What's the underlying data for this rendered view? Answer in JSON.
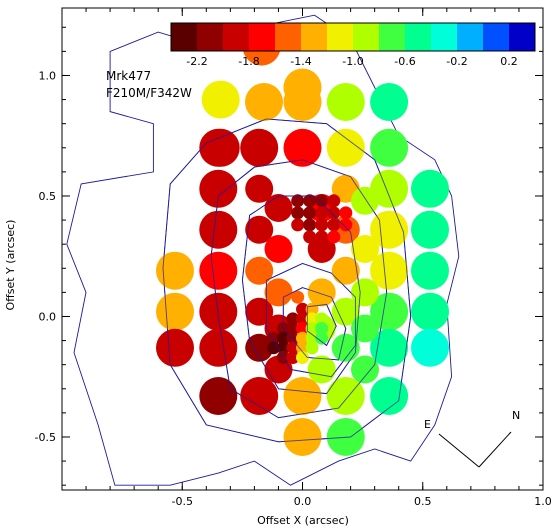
{
  "chart_data": {
    "type": "scatter",
    "title": "Mrk477",
    "subtitle": "F210M/F342W",
    "xlabel": "Offset X (arcsec)",
    "ylabel": "Offset Y (arcsec)",
    "xlim": [
      -1.0,
      1.0
    ],
    "ylim": [
      -0.72,
      1.28
    ],
    "x_ticks": [
      -0.5,
      0.0,
      0.5,
      1.0
    ],
    "x_tick_labels": [
      "-0.5",
      "0.0",
      "0.5",
      "1.0"
    ],
    "y_ticks": [
      -0.5,
      0.0,
      0.5,
      1.0
    ],
    "y_tick_labels": [
      "-0.5",
      "0.0",
      "0.5",
      "1.0"
    ],
    "grid": false,
    "colorbar": {
      "placement": "top-right",
      "range": [
        -2.4,
        0.4
      ],
      "tick_values": [
        -2.2,
        -1.8,
        -1.4,
        -1.0,
        -0.6,
        -0.2,
        0.2
      ],
      "tick_labels": [
        "-2.2",
        "-1.8",
        "-1.4",
        "-1.0",
        "-0.6",
        "-0.2",
        "0.2"
      ],
      "colors": [
        "#5a0000",
        "#900000",
        "#c80000",
        "#ff0000",
        "#ff6000",
        "#ffb000",
        "#f0f000",
        "#b0ff00",
        "#40ff40",
        "#00ff90",
        "#00ffd8",
        "#00b0ff",
        "#0050ff",
        "#0000c8"
      ]
    },
    "compass": {
      "east_label": "E",
      "north_label": "N"
    },
    "contour_color": "#1a1aa0",
    "bins_large": [
      {
        "x": -0.17,
        "y": 1.12,
        "v": -1.45
      },
      {
        "x": -0.34,
        "y": 0.9,
        "v": -1.1
      },
      {
        "x": -0.34,
        "y": 0.7,
        "v": -1.8
      },
      {
        "x": 0.0,
        "y": 0.95,
        "v": -1.3
      },
      {
        "x": 0.0,
        "y": 0.89,
        "v": -1.3
      },
      {
        "x": 0.18,
        "y": 0.89,
        "v": -1.0
      },
      {
        "x": 0.36,
        "y": 0.89,
        "v": -0.55
      },
      {
        "x": -0.16,
        "y": 0.89,
        "v": -1.3
      },
      {
        "x": -0.35,
        "y": 0.7,
        "v": -1.8
      },
      {
        "x": -0.18,
        "y": 0.7,
        "v": -1.8
      },
      {
        "x": 0.0,
        "y": 0.7,
        "v": -1.6
      },
      {
        "x": 0.18,
        "y": 0.7,
        "v": -1.1
      },
      {
        "x": 0.36,
        "y": 0.7,
        "v": -0.75
      },
      {
        "x": -0.35,
        "y": 0.53,
        "v": -1.8
      },
      {
        "x": -0.35,
        "y": 0.36,
        "v": -1.8
      },
      {
        "x": -0.35,
        "y": 0.19,
        "v": -1.6
      },
      {
        "x": -0.35,
        "y": 0.02,
        "v": -1.9
      },
      {
        "x": -0.35,
        "y": -0.13,
        "v": -1.9
      },
      {
        "x": -0.35,
        "y": -0.33,
        "v": -2.0
      },
      {
        "x": -0.53,
        "y": 0.19,
        "v": -1.3
      },
      {
        "x": -0.53,
        "y": 0.02,
        "v": -1.4
      },
      {
        "x": -0.53,
        "y": -0.13,
        "v": -1.8
      },
      {
        "x": -0.18,
        "y": -0.33,
        "v": -1.9
      },
      {
        "x": 0.0,
        "y": -0.33,
        "v": -1.3
      },
      {
        "x": 0.18,
        "y": -0.33,
        "v": -1.0
      },
      {
        "x": 0.36,
        "y": -0.33,
        "v": -0.55
      },
      {
        "x": 0.0,
        "y": -0.5,
        "v": -1.4
      },
      {
        "x": 0.18,
        "y": -0.5,
        "v": -0.65
      },
      {
        "x": 0.53,
        "y": 0.53,
        "v": -0.55
      },
      {
        "x": 0.53,
        "y": 0.36,
        "v": -0.6
      },
      {
        "x": 0.53,
        "y": 0.19,
        "v": -0.6
      },
      {
        "x": 0.53,
        "y": 0.02,
        "v": -0.6
      },
      {
        "x": 0.53,
        "y": -0.13,
        "v": -0.4
      },
      {
        "x": 0.36,
        "y": 0.53,
        "v": -1.0
      },
      {
        "x": 0.36,
        "y": 0.36,
        "v": -1.2
      },
      {
        "x": 0.36,
        "y": 0.19,
        "v": -1.1
      },
      {
        "x": 0.36,
        "y": 0.02,
        "v": -0.7
      },
      {
        "x": 0.36,
        "y": -0.13,
        "v": -0.6
      }
    ],
    "bins_medium": [
      {
        "x": -0.18,
        "y": 0.53,
        "v": -1.9
      },
      {
        "x": -0.18,
        "y": 0.36,
        "v": -1.8
      },
      {
        "x": -0.18,
        "y": 0.19,
        "v": -1.5
      },
      {
        "x": -0.18,
        "y": 0.02,
        "v": -1.9
      },
      {
        "x": -0.18,
        "y": -0.13,
        "v": -2.0
      },
      {
        "x": 0.18,
        "y": 0.53,
        "v": -1.3
      },
      {
        "x": 0.18,
        "y": 0.36,
        "v": -1.5
      },
      {
        "x": 0.18,
        "y": 0.19,
        "v": -1.4
      },
      {
        "x": 0.18,
        "y": 0.02,
        "v": -0.9
      },
      {
        "x": 0.18,
        "y": -0.13,
        "v": -0.8
      },
      {
        "x": 0.26,
        "y": 0.48,
        "v": -1.0
      },
      {
        "x": 0.26,
        "y": 0.28,
        "v": -1.2
      },
      {
        "x": 0.26,
        "y": 0.1,
        "v": -0.9
      },
      {
        "x": 0.26,
        "y": -0.05,
        "v": -0.75
      },
      {
        "x": 0.26,
        "y": -0.22,
        "v": -0.8
      },
      {
        "x": -0.1,
        "y": 0.45,
        "v": -1.9
      },
      {
        "x": -0.1,
        "y": 0.28,
        "v": -1.7
      },
      {
        "x": -0.1,
        "y": 0.1,
        "v": -1.5
      },
      {
        "x": -0.1,
        "y": -0.05,
        "v": -1.9
      },
      {
        "x": -0.1,
        "y": -0.22,
        "v": -1.9
      },
      {
        "x": 0.08,
        "y": 0.45,
        "v": -1.7
      },
      {
        "x": 0.08,
        "y": 0.28,
        "v": -1.8
      },
      {
        "x": 0.08,
        "y": 0.1,
        "v": -1.3
      },
      {
        "x": 0.08,
        "y": -0.05,
        "v": -1.0
      },
      {
        "x": 0.08,
        "y": -0.22,
        "v": -1.0
      }
    ],
    "bins_small": [
      {
        "x": -0.02,
        "y": 0.48,
        "v": -2.1
      },
      {
        "x": 0.03,
        "y": 0.48,
        "v": -2.0
      },
      {
        "x": 0.08,
        "y": 0.48,
        "v": -2.0
      },
      {
        "x": 0.13,
        "y": 0.48,
        "v": -1.8
      },
      {
        "x": -0.02,
        "y": 0.43,
        "v": -2.0
      },
      {
        "x": 0.03,
        "y": 0.43,
        "v": -2.1
      },
      {
        "x": 0.08,
        "y": 0.43,
        "v": -1.9
      },
      {
        "x": 0.13,
        "y": 0.43,
        "v": -1.9
      },
      {
        "x": 0.18,
        "y": 0.43,
        "v": -1.7
      },
      {
        "x": -0.02,
        "y": 0.38,
        "v": -1.9
      },
      {
        "x": 0.03,
        "y": 0.38,
        "v": -2.0
      },
      {
        "x": 0.08,
        "y": 0.38,
        "v": -1.9
      },
      {
        "x": 0.13,
        "y": 0.38,
        "v": -1.8
      },
      {
        "x": 0.18,
        "y": 0.38,
        "v": -1.6
      },
      {
        "x": 0.03,
        "y": 0.33,
        "v": -1.8
      },
      {
        "x": 0.08,
        "y": 0.33,
        "v": -1.8
      },
      {
        "x": 0.13,
        "y": 0.33,
        "v": -1.7
      },
      {
        "x": -0.02,
        "y": 0.08,
        "v": -1.5
      },
      {
        "x": 0.0,
        "y": 0.03,
        "v": -1.8
      },
      {
        "x": 0.04,
        "y": 0.03,
        "v": -1.4
      },
      {
        "x": -0.04,
        "y": -0.01,
        "v": -2.0
      },
      {
        "x": 0.0,
        "y": -0.01,
        "v": -1.9
      },
      {
        "x": 0.04,
        "y": -0.01,
        "v": -1.2
      },
      {
        "x": 0.08,
        "y": -0.01,
        "v": -0.9
      },
      {
        "x": -0.08,
        "y": -0.05,
        "v": -2.1
      },
      {
        "x": -0.04,
        "y": -0.05,
        "v": -2.1
      },
      {
        "x": 0.0,
        "y": -0.05,
        "v": -1.7
      },
      {
        "x": 0.04,
        "y": -0.05,
        "v": -1.0
      },
      {
        "x": 0.08,
        "y": -0.05,
        "v": -0.8
      },
      {
        "x": -0.12,
        "y": -0.09,
        "v": -2.1
      },
      {
        "x": -0.08,
        "y": -0.09,
        "v": -2.2
      },
      {
        "x": -0.04,
        "y": -0.09,
        "v": -2.0
      },
      {
        "x": 0.0,
        "y": -0.09,
        "v": -1.4
      },
      {
        "x": 0.04,
        "y": -0.09,
        "v": -0.9
      },
      {
        "x": 0.08,
        "y": -0.09,
        "v": -0.8
      },
      {
        "x": -0.12,
        "y": -0.13,
        "v": -2.2
      },
      {
        "x": -0.08,
        "y": -0.13,
        "v": -2.2
      },
      {
        "x": -0.04,
        "y": -0.13,
        "v": -1.9
      },
      {
        "x": 0.0,
        "y": -0.13,
        "v": -1.3
      },
      {
        "x": 0.04,
        "y": -0.13,
        "v": -0.9
      },
      {
        "x": -0.08,
        "y": -0.17,
        "v": -2.1
      },
      {
        "x": -0.04,
        "y": -0.17,
        "v": -1.8
      },
      {
        "x": 0.0,
        "y": -0.17,
        "v": -1.2
      }
    ],
    "contours": [
      [
        [
          -0.8,
          1.1
        ],
        [
          -0.8,
          0.85
        ],
        [
          -0.62,
          0.8
        ],
        [
          -0.62,
          0.6
        ],
        [
          -0.92,
          0.55
        ],
        [
          -0.98,
          0.3
        ],
        [
          -0.9,
          0.1
        ],
        [
          -0.95,
          -0.15
        ],
        [
          -0.85,
          -0.45
        ],
        [
          -0.78,
          -0.7
        ],
        [
          -0.55,
          -0.7
        ],
        [
          -0.35,
          -0.65
        ],
        [
          -0.2,
          -0.6
        ],
        [
          -0.05,
          -0.7
        ],
        [
          0.15,
          -0.6
        ],
        [
          0.3,
          -0.55
        ],
        [
          0.45,
          -0.6
        ],
        [
          0.55,
          -0.45
        ],
        [
          0.62,
          -0.25
        ],
        [
          0.6,
          0.05
        ],
        [
          0.65,
          0.25
        ],
        [
          0.62,
          0.5
        ],
        [
          0.55,
          0.65
        ],
        [
          0.4,
          0.75
        ],
        [
          0.3,
          0.95
        ],
        [
          0.2,
          1.15
        ],
        [
          0.05,
          1.25
        ],
        [
          -0.2,
          1.2
        ],
        [
          -0.4,
          1.12
        ],
        [
          -0.6,
          1.18
        ],
        [
          -0.8,
          1.1
        ]
      ],
      [
        [
          -0.55,
          0.55
        ],
        [
          -0.58,
          0.2
        ],
        [
          -0.55,
          -0.2
        ],
        [
          -0.4,
          -0.45
        ],
        [
          -0.1,
          -0.52
        ],
        [
          0.2,
          -0.5
        ],
        [
          0.4,
          -0.35
        ],
        [
          0.45,
          0.0
        ],
        [
          0.42,
          0.35
        ],
        [
          0.3,
          0.65
        ],
        [
          0.1,
          0.8
        ],
        [
          -0.15,
          0.82
        ],
        [
          -0.4,
          0.72
        ],
        [
          -0.55,
          0.55
        ]
      ],
      [
        [
          -0.35,
          0.5
        ],
        [
          -0.38,
          0.25
        ],
        [
          -0.35,
          0.0
        ],
        [
          -0.3,
          -0.3
        ],
        [
          -0.1,
          -0.42
        ],
        [
          0.15,
          -0.38
        ],
        [
          0.3,
          -0.2
        ],
        [
          0.35,
          0.1
        ],
        [
          0.32,
          0.4
        ],
        [
          0.2,
          0.58
        ],
        [
          0.0,
          0.65
        ],
        [
          -0.2,
          0.62
        ],
        [
          -0.35,
          0.5
        ]
      ],
      [
        [
          -0.22,
          0.42
        ],
        [
          -0.25,
          0.15
        ],
        [
          -0.22,
          -0.1
        ],
        [
          -0.1,
          -0.3
        ],
        [
          0.1,
          -0.32
        ],
        [
          0.22,
          -0.15
        ],
        [
          0.24,
          0.1
        ],
        [
          0.2,
          0.35
        ],
        [
          0.05,
          0.5
        ],
        [
          -0.1,
          0.5
        ],
        [
          -0.22,
          0.42
        ]
      ],
      [
        [
          -0.15,
          0.15
        ],
        [
          -0.15,
          -0.05
        ],
        [
          -0.05,
          -0.22
        ],
        [
          0.12,
          -0.25
        ],
        [
          0.22,
          -0.12
        ],
        [
          0.22,
          0.08
        ],
        [
          0.12,
          0.18
        ],
        [
          0.0,
          0.22
        ],
        [
          -0.15,
          0.15
        ]
      ],
      [
        [
          -0.08,
          0.08
        ],
        [
          -0.08,
          -0.05
        ],
        [
          0.02,
          -0.17
        ],
        [
          0.15,
          -0.18
        ],
        [
          0.18,
          -0.05
        ],
        [
          0.12,
          0.08
        ],
        [
          0.0,
          0.12
        ],
        [
          -0.08,
          0.08
        ]
      ],
      [
        [
          0.02,
          0.04
        ],
        [
          0.02,
          -0.06
        ],
        [
          0.1,
          -0.12
        ],
        [
          0.14,
          -0.04
        ],
        [
          0.1,
          0.05
        ],
        [
          0.02,
          0.04
        ]
      ]
    ]
  }
}
